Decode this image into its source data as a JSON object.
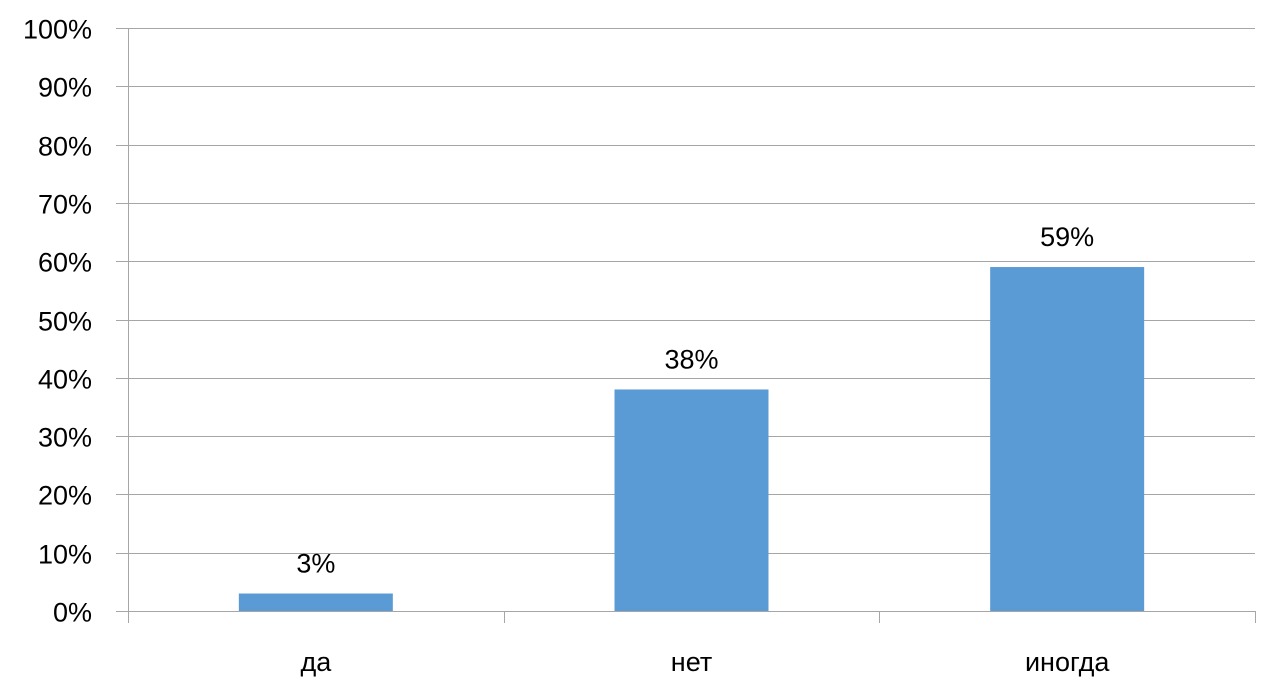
{
  "chart_data": {
    "type": "bar",
    "categories": [
      "да",
      "нет",
      "иногда"
    ],
    "values": [
      3,
      38,
      59
    ],
    "value_labels": [
      "3%",
      "38%",
      "59%"
    ],
    "y_tick_labels": [
      "0%",
      "10%",
      "20%",
      "30%",
      "40%",
      "50%",
      "60%",
      "70%",
      "80%",
      "90%",
      "100%"
    ],
    "ylim": [
      0,
      100
    ],
    "y_step": 10,
    "grid": true,
    "legend": "none",
    "colors": {
      "bar": "#5b9bd5",
      "grid": "#a6a6a6",
      "text": "#000000"
    }
  }
}
